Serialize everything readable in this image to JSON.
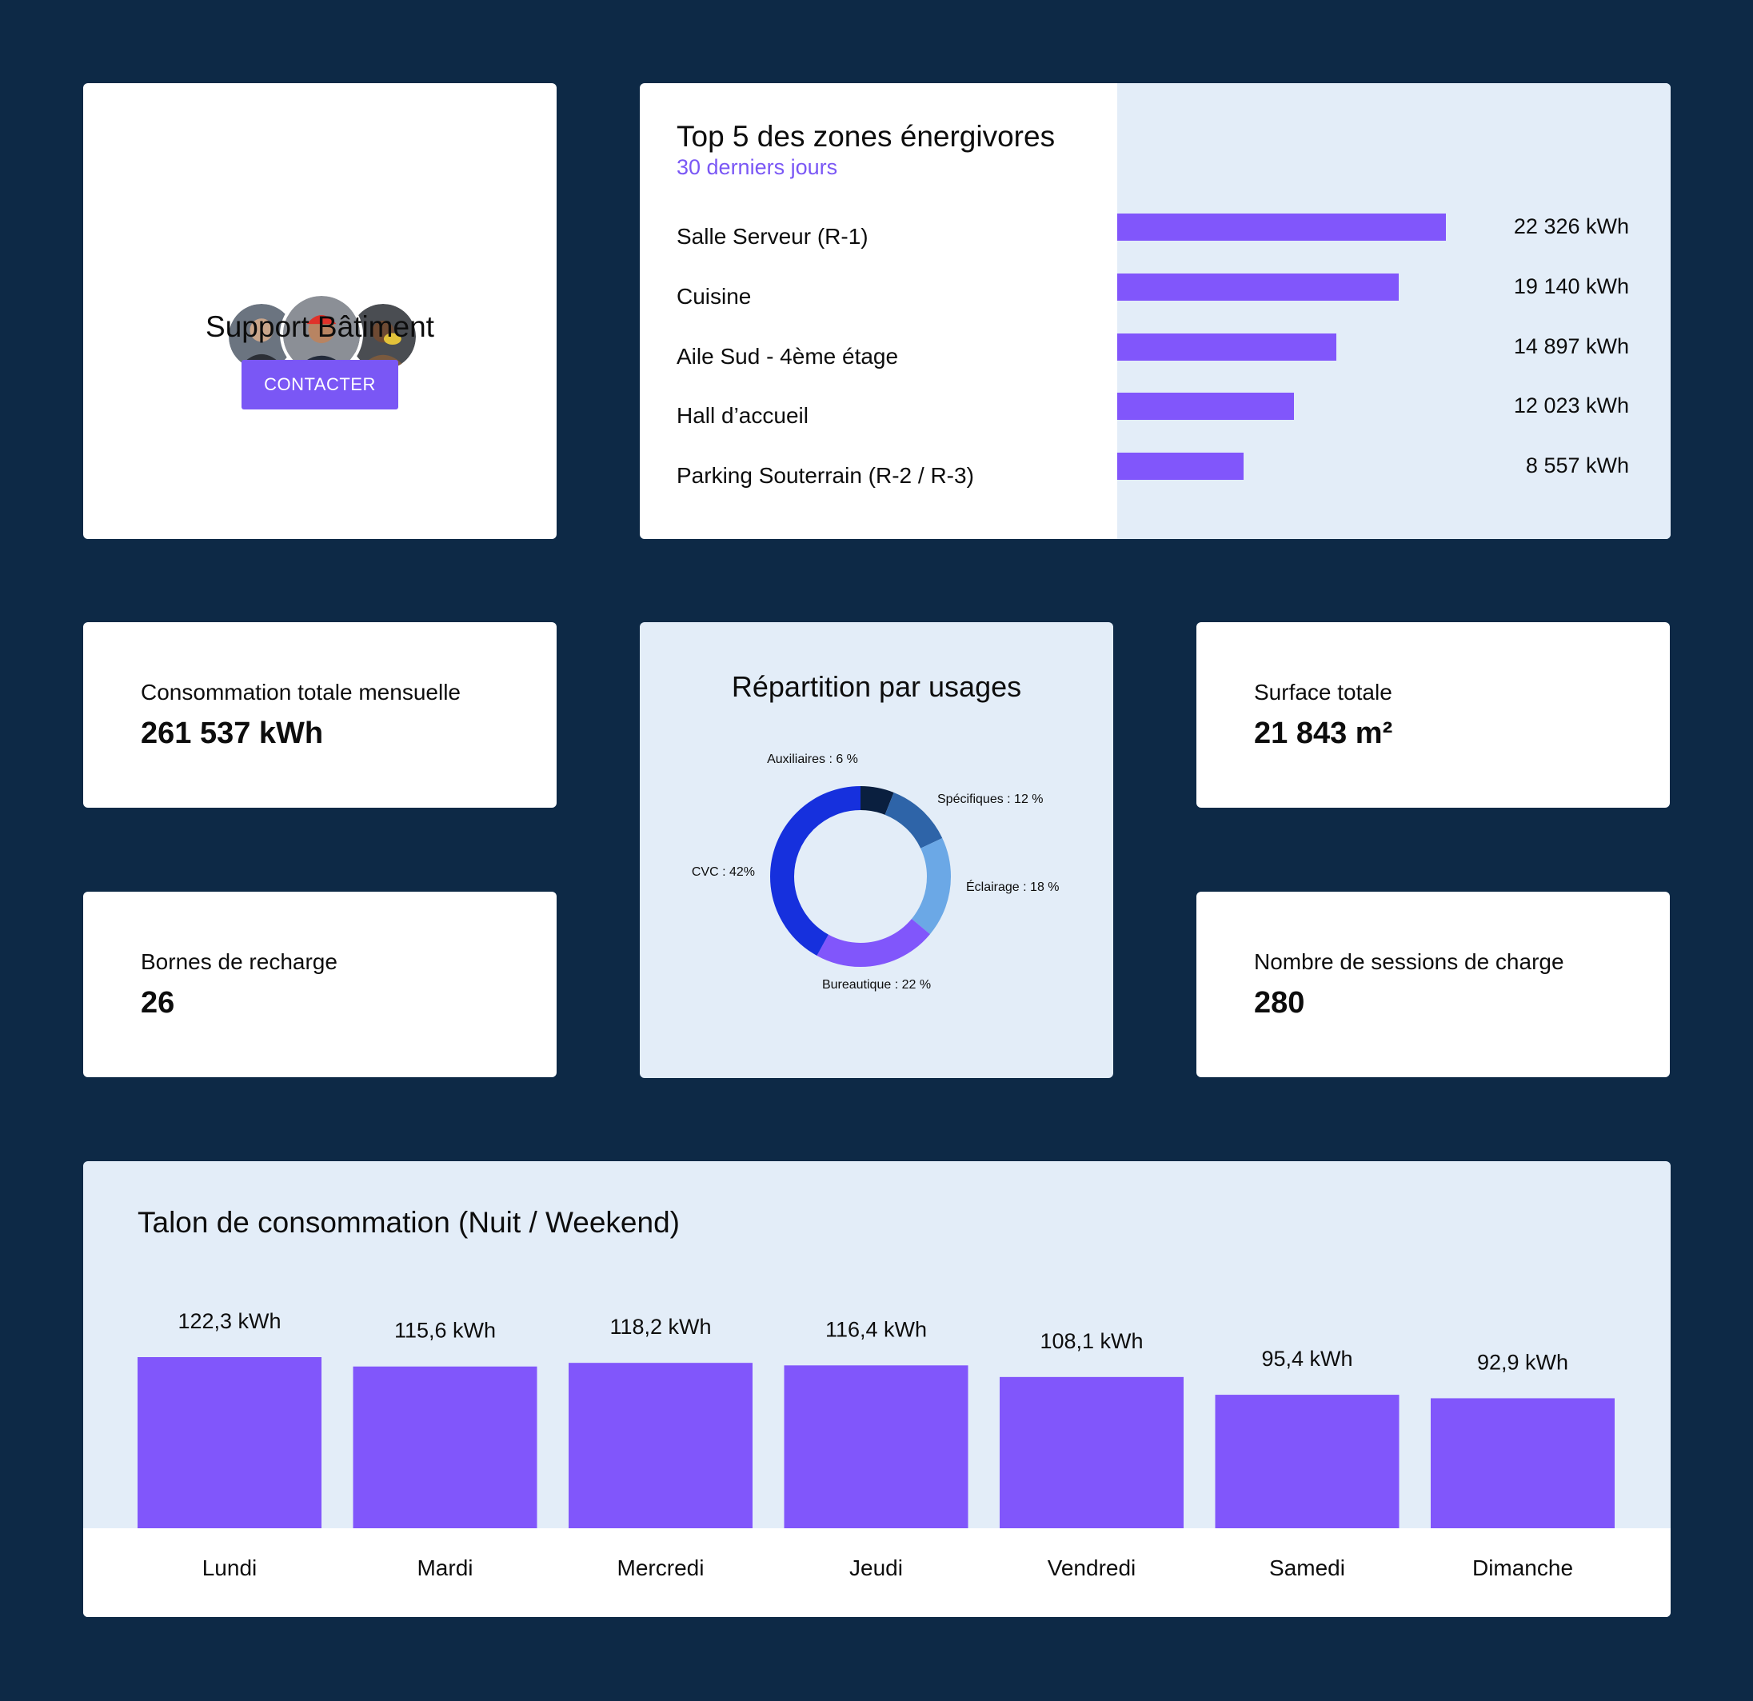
{
  "colors": {
    "background": "#0d2946",
    "accent": "#7a57f5",
    "bar": "#8156fb",
    "light_panel": "#e3edf8"
  },
  "support": {
    "title": "Support Bâtiment",
    "contact_label": "CONTACTER"
  },
  "top_zones": {
    "title": "Top 5 des zones énergivores",
    "subtitle": "30 derniers jours",
    "items": [
      {
        "label": "Salle Serveur (R-1)",
        "value": 22326,
        "value_label": "22 326 kWh"
      },
      {
        "label": "Cuisine",
        "value": 19140,
        "value_label": "19 140 kWh"
      },
      {
        "label": "Aile Sud - 4ème étage",
        "value": 14897,
        "value_label": "14 897 kWh"
      },
      {
        "label": "Hall d’accueil",
        "value": 12023,
        "value_label": "12 023 kWh"
      },
      {
        "label": "Parking Souterrain (R-2 / R-3)",
        "value": 8557,
        "value_label": "8 557 kWh"
      }
    ]
  },
  "kpis": {
    "consumption": {
      "label": "Consommation totale mensuelle",
      "value": "261 537 kWh"
    },
    "bornes": {
      "label": "Bornes de recharge",
      "value": "26"
    },
    "surface": {
      "label": "Surface totale",
      "value": "21 843 m²"
    },
    "sessions": {
      "label": "Nombre de sessions de charge",
      "value": "280"
    }
  },
  "usages": {
    "title": "Répartition par usages",
    "slices": [
      {
        "name": "Auxiliaires",
        "label": "Auxiliaires : 6 %",
        "percent": 6,
        "color": "#0a1f3f"
      },
      {
        "name": "Spécifiques",
        "label": "Spécifiques : 12 %",
        "percent": 12,
        "color": "#2e64a8"
      },
      {
        "name": "Éclairage",
        "label": "Éclairage : 18 %",
        "percent": 18,
        "color": "#6ba8e6"
      },
      {
        "name": "Bureautique",
        "label": "Bureautique : 22 %",
        "percent": 22,
        "color": "#8156fb"
      },
      {
        "name": "CVC",
        "label": "CVC : 42%",
        "percent": 42,
        "color": "#1630dd"
      }
    ]
  },
  "chart_data": {
    "type": "bar",
    "title": "Talon de consommation (Nuit / Weekend)",
    "categories": [
      "Lundi",
      "Mardi",
      "Mercredi",
      "Jeudi",
      "Vendredi",
      "Samedi",
      "Dimanche"
    ],
    "values": [
      122.3,
      115.6,
      118.2,
      116.4,
      108.1,
      95.4,
      92.9
    ],
    "value_labels": [
      "122,3 kWh",
      "115,6 kWh",
      "118,2 kWh",
      "116,4 kWh",
      "108,1 kWh",
      "95,4 kWh",
      "92,9 kWh"
    ],
    "unit": "kWh",
    "xlabel": "",
    "ylabel": "",
    "grid": false
  }
}
